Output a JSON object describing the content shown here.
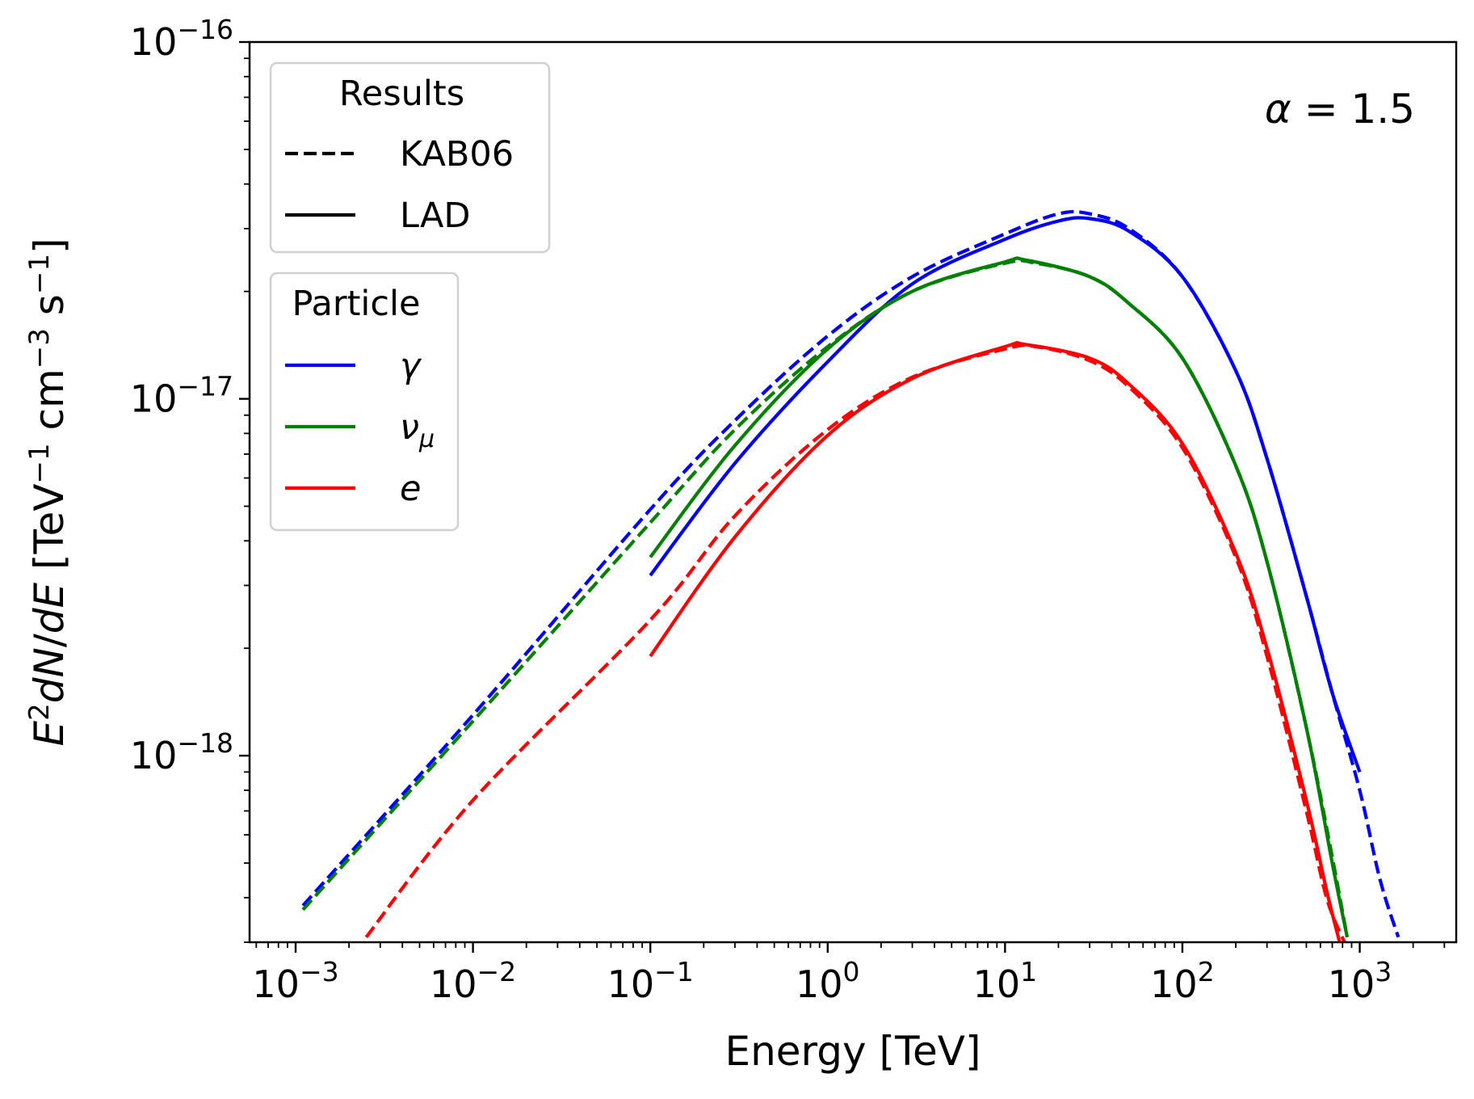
{
  "chart_data": {
    "type": "line",
    "xlabel": "Energy [TeV]",
    "ylabel": "E^2dN/dE [TeV^-1 cm^-3 s^-1]",
    "xscale": "log",
    "yscale": "log",
    "xlim": [
      0.00055,
      3500
    ],
    "ylim": [
      3e-19,
      1e-16
    ],
    "grid": false,
    "x_tick_labels": [
      "10^-3",
      "10^-2",
      "10^-1",
      "10^0",
      "10^1",
      "10^2",
      "10^3"
    ],
    "y_tick_labels": [
      "10^-18",
      "10^-17",
      "10^-16"
    ],
    "annotation": "α = 1.5",
    "legends": [
      {
        "title": "Results",
        "placement": "upper-left",
        "entries": [
          {
            "label": "KAB06",
            "style": "dashed",
            "color": "#000000"
          },
          {
            "label": "LAD",
            "style": "solid",
            "color": "#000000"
          }
        ]
      },
      {
        "title": "Particle",
        "placement": "upper-left",
        "entries": [
          {
            "label": "γ",
            "style": "solid",
            "color": "#0000ff"
          },
          {
            "label": "ν_μ",
            "style": "solid",
            "color": "#008000"
          },
          {
            "label": "e",
            "style": "solid",
            "color": "#ff0000"
          }
        ]
      }
    ],
    "series": [
      {
        "particle": "γ",
        "result": "KAB06",
        "color": "#0000ff",
        "style": "dashed",
        "points": [
          [
            0.0011,
            3.8e-19
          ],
          [
            0.01,
            1.3e-18
          ],
          [
            0.1,
            4.9e-18
          ],
          [
            0.3,
            8.7e-18
          ],
          [
            1,
            1.5e-17
          ],
          [
            3,
            2.2e-17
          ],
          [
            10,
            2.9e-17
          ],
          [
            20,
            3.3e-17
          ],
          [
            30,
            3.3e-17
          ],
          [
            50,
            3e-17
          ],
          [
            100,
            2.2e-17
          ],
          [
            200,
            1.2e-17
          ],
          [
            300,
            6.8e-18
          ],
          [
            500,
            2.8e-18
          ],
          [
            700,
            1.5e-18
          ],
          [
            1000,
            8e-19
          ],
          [
            1300,
            4.5e-19
          ],
          [
            1650,
            3.1e-19
          ]
        ]
      },
      {
        "particle": "γ",
        "result": "LAD",
        "color": "#0000ff",
        "style": "solid",
        "points": [
          [
            0.1,
            3.2e-18
          ],
          [
            0.3,
            6.6e-18
          ],
          [
            1,
            1.27e-17
          ],
          [
            3,
            2.1e-17
          ],
          [
            10,
            2.8e-17
          ],
          [
            20,
            3.15e-17
          ],
          [
            30,
            3.2e-17
          ],
          [
            50,
            2.95e-17
          ],
          [
            100,
            2.2e-17
          ],
          [
            200,
            1.2e-17
          ],
          [
            300,
            6.8e-18
          ],
          [
            500,
            2.8e-18
          ],
          [
            700,
            1.5e-18
          ],
          [
            1000,
            9e-19
          ]
        ]
      },
      {
        "particle": "ν_μ",
        "result": "KAB06",
        "color": "#008000",
        "style": "dashed",
        "points": [
          [
            0.0011,
            3.7e-19
          ],
          [
            0.01,
            1.25e-18
          ],
          [
            0.1,
            4.5e-18
          ],
          [
            0.3,
            8.2e-18
          ],
          [
            1,
            1.4e-17
          ],
          [
            3,
            2e-17
          ],
          [
            10,
            2.4e-17
          ],
          [
            15,
            2.4e-17
          ],
          [
            30,
            2.2e-17
          ],
          [
            50,
            1.85e-17
          ],
          [
            100,
            1.3e-17
          ],
          [
            200,
            6.5e-18
          ],
          [
            300,
            3.5e-18
          ],
          [
            500,
            1.2e-18
          ],
          [
            700,
            5.2e-19
          ],
          [
            850,
            3.1e-19
          ]
        ]
      },
      {
        "particle": "ν_μ",
        "result": "LAD",
        "color": "#008000",
        "style": "solid",
        "points": [
          [
            0.1,
            3.6e-18
          ],
          [
            0.3,
            7.4e-18
          ],
          [
            1,
            1.38e-17
          ],
          [
            3,
            2e-17
          ],
          [
            10,
            2.42e-17
          ],
          [
            13,
            2.45e-17
          ],
          [
            30,
            2.2e-17
          ],
          [
            50,
            1.85e-17
          ],
          [
            100,
            1.3e-17
          ],
          [
            200,
            6.5e-18
          ],
          [
            300,
            3.5e-18
          ],
          [
            500,
            1.2e-18
          ],
          [
            700,
            5e-19
          ],
          [
            850,
            3.1e-19
          ]
        ]
      },
      {
        "particle": "e",
        "result": "KAB06",
        "color": "#ff0000",
        "style": "dashed",
        "points": [
          [
            0.0025,
            3.1e-19
          ],
          [
            0.01,
            7.5e-19
          ],
          [
            0.1,
            2.4e-18
          ],
          [
            0.3,
            4.7e-18
          ],
          [
            1,
            8.2e-18
          ],
          [
            3,
            1.15e-17
          ],
          [
            10,
            1.38e-17
          ],
          [
            15,
            1.4e-17
          ],
          [
            30,
            1.28e-17
          ],
          [
            50,
            1.08e-17
          ],
          [
            100,
            7.3e-18
          ],
          [
            200,
            3.6e-18
          ],
          [
            300,
            1.9e-18
          ],
          [
            500,
            7e-19
          ],
          [
            650,
            4e-19
          ],
          [
            820,
            3e-19
          ]
        ]
      },
      {
        "particle": "e",
        "result": "LAD",
        "color": "#ff0000",
        "style": "solid",
        "points": [
          [
            0.1,
            1.9e-18
          ],
          [
            0.3,
            4.1e-18
          ],
          [
            1,
            7.9e-18
          ],
          [
            3,
            1.14e-17
          ],
          [
            10,
            1.4e-17
          ],
          [
            13,
            1.42e-17
          ],
          [
            30,
            1.3e-17
          ],
          [
            50,
            1.1e-17
          ],
          [
            100,
            7.5e-18
          ],
          [
            200,
            3.7e-18
          ],
          [
            300,
            2e-18
          ],
          [
            500,
            7.5e-19
          ],
          [
            650,
            4.2e-19
          ],
          [
            770,
            3e-19
          ]
        ]
      }
    ]
  }
}
